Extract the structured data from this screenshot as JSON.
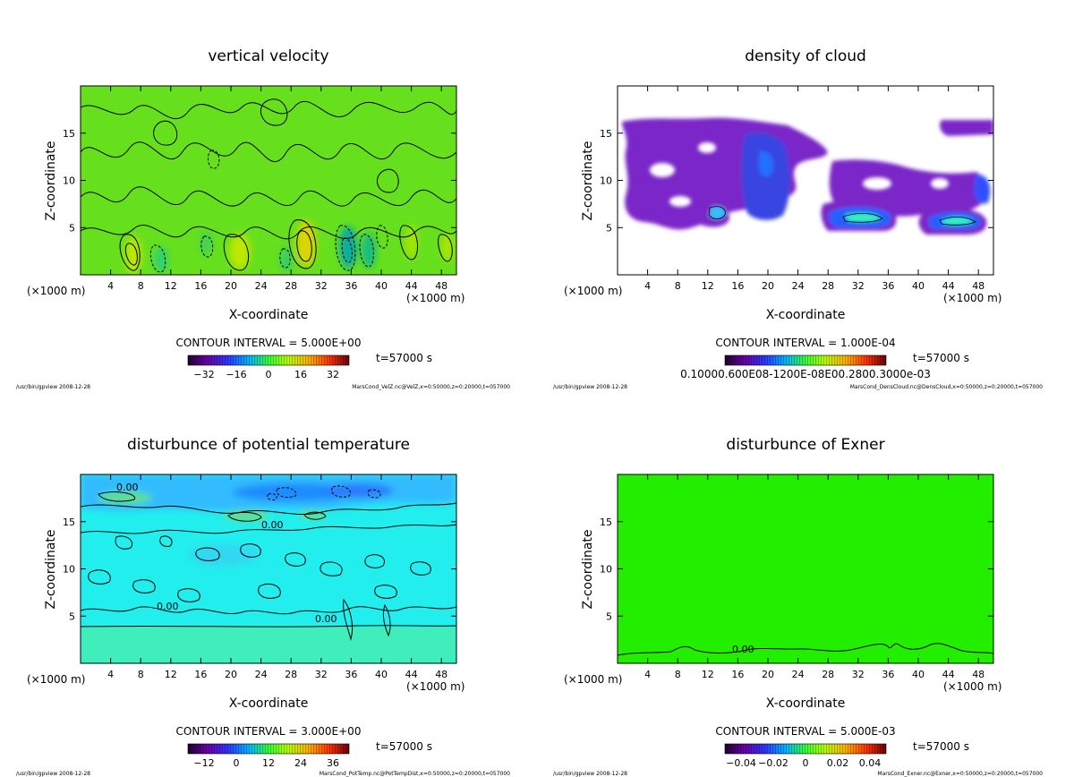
{
  "panels": [
    {
      "title": "vertical velocity",
      "fill": "#66e01c",
      "xlabel": "X-coordinate",
      "ylabel": "Z-coordinate",
      "xunit": "(×1000 m)",
      "contour_interval": "CONTOUR INTERVAL = 5.000E+00",
      "time": "t=57000 s",
      "colorbar_ticks": [
        "−32",
        "−16",
        "0",
        "16",
        "32"
      ],
      "footer_left": "/usr/bin/gpview  2008-12-28",
      "footer_right": "MarsCond_VelZ.nc@VelZ,x=0:50000,z=0:20000,t=057000",
      "contour_labels": []
    },
    {
      "title": "density of cloud",
      "fill": "#ffffff",
      "xlabel": "X-coordinate",
      "ylabel": "Z-coordinate",
      "xunit": "(×1000 m)",
      "contour_interval": "CONTOUR INTERVAL = 1.000E-04",
      "time": "t=57000 s",
      "colorbar_ticks_overlap": "0.10000.600E08-1200E-08E00.2800.3000e-03",
      "footer_left": "/usr/bin/gpview  2008-12-28",
      "footer_right": "MarsCond_DensCloud.nc@DensCloud,x=0:50000,z=0:20000,t=057000",
      "contour_labels": []
    },
    {
      "title": "disturbunce of potential temperature",
      "fill": "#22eeee",
      "xlabel": "X-coordinate",
      "ylabel": "Z-coordinate",
      "xunit": "(×1000 m)",
      "contour_interval": "CONTOUR INTERVAL = 3.000E+00",
      "time": "t=57000 s",
      "colorbar_ticks": [
        "−12",
        "0",
        "12",
        "24",
        "36"
      ],
      "footer_left": "/usr/bin/gpview  2008-12-28",
      "footer_right": "MarsCond_PotTemp.nc@PotTempDist,x=0:50000,z=0:20000,t=057000",
      "contour_labels": [
        "0.00",
        "0.00",
        "0.00",
        "0.00"
      ]
    },
    {
      "title": "disturbunce of Exner",
      "fill": "#22ee00",
      "xlabel": "X-coordinate",
      "ylabel": "Z-coordinate",
      "xunit": "(×1000 m)",
      "contour_interval": "CONTOUR INTERVAL = 5.000E-03",
      "time": "t=57000 s",
      "colorbar_ticks": [
        "−0.04",
        "−0.02",
        "0",
        "0.02",
        "0.04"
      ],
      "footer_left": "/usr/bin/gpview  2008-12-28",
      "footer_right": "MarsCond_Exner.nc@Exner,x=0:50000,z=0:20000,t=057000",
      "contour_labels": [
        "0.00"
      ]
    }
  ],
  "chart_data": [
    {
      "type": "heatmap",
      "title": "vertical velocity",
      "xlabel": "X-coordinate",
      "ylabel": "Z-coordinate",
      "x_ticks": [
        4,
        8,
        12,
        16,
        20,
        24,
        28,
        32,
        36,
        40,
        44,
        48
      ],
      "y_ticks": [
        5,
        10,
        15
      ],
      "xlim": [
        0,
        50
      ],
      "ylim": [
        0,
        20
      ],
      "cells": [
        {
          "x": 7,
          "z": 2.5,
          "value": 16
        },
        {
          "x": 20.5,
          "z": 2.5,
          "value": 16
        },
        {
          "x": 30,
          "z": 3,
          "value": 26
        },
        {
          "x": 44,
          "z": 3,
          "value": 10
        },
        {
          "x": 48.5,
          "z": 2.5,
          "value": 12
        },
        {
          "x": 10.5,
          "z": 2,
          "value": -8
        },
        {
          "x": 35.5,
          "z": 2.5,
          "value": -22
        },
        {
          "x": 38,
          "z": 2.5,
          "value": -16
        },
        {
          "x": 28,
          "z": 2,
          "value": -6
        }
      ]
    },
    {
      "type": "heatmap",
      "title": "density of cloud",
      "xlabel": "X-coordinate",
      "ylabel": "Z-coordinate",
      "x_ticks": [
        4,
        8,
        12,
        16,
        20,
        24,
        28,
        32,
        36,
        40,
        44,
        48
      ],
      "y_ticks": [
        5,
        10,
        15
      ],
      "xlim": [
        0,
        50
      ],
      "ylim": [
        0,
        20
      ],
      "cells": [
        {
          "x": 19,
          "z": 11,
          "value": 0.00015
        },
        {
          "x": 33,
          "z": 6,
          "value": 0.00025
        },
        {
          "x": 46,
          "z": 6,
          "value": 0.00028
        },
        {
          "x": 12,
          "z": 7,
          "value": 0.0001
        },
        {
          "x": 49.5,
          "z": 9,
          "value": 0.0001
        },
        {
          "x": 18,
          "z": 15,
          "value": 6e-05
        }
      ]
    },
    {
      "type": "heatmap",
      "title": "disturbunce of potential temperature",
      "xlabel": "X-coordinate",
      "ylabel": "Z-coordinate",
      "x_ticks": [
        4,
        8,
        12,
        16,
        20,
        24,
        28,
        32,
        36,
        40,
        44,
        48
      ],
      "y_ticks": [
        5,
        10,
        15
      ],
      "xlim": [
        0,
        50
      ],
      "ylim": [
        0,
        20
      ],
      "cells": [
        {
          "x": 25,
          "z": 19,
          "value": -8
        },
        {
          "x": 35,
          "z": 19,
          "value": -10
        },
        {
          "x": 8,
          "z": 18,
          "value": 3
        },
        {
          "x": 20,
          "z": 17,
          "value": 3
        },
        {
          "x": 25,
          "z": 10,
          "value": -3
        },
        {
          "x": 25,
          "z": 2,
          "value": 1
        }
      ]
    },
    {
      "type": "heatmap",
      "title": "disturbunce of Exner",
      "xlabel": "X-coordinate",
      "ylabel": "Z-coordinate",
      "x_ticks": [
        4,
        8,
        12,
        16,
        20,
        24,
        28,
        32,
        36,
        40,
        44,
        48
      ],
      "y_ticks": [
        5,
        10,
        15
      ],
      "xlim": [
        0,
        50
      ],
      "ylim": [
        0,
        20
      ],
      "cells": [
        {
          "x": 25,
          "z": 10,
          "value": 0.0
        }
      ]
    }
  ]
}
